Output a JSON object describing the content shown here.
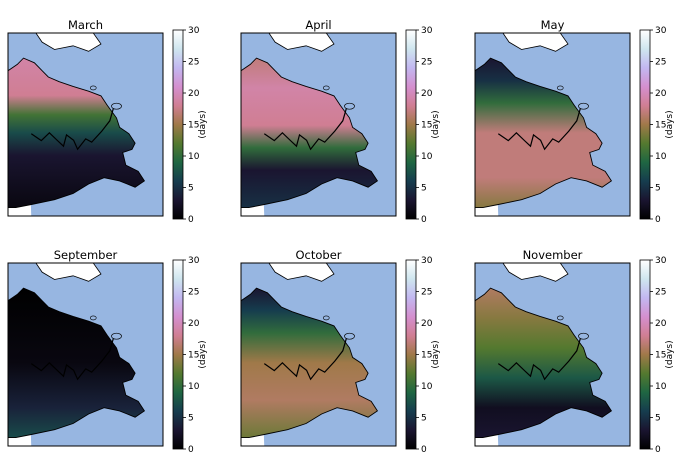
{
  "chart_data": {
    "type": "heatmap",
    "colormap": "cubehelix",
    "ocean_color": "#97b6e1",
    "colorbar": {
      "label": "(days)",
      "range": [
        0,
        30
      ],
      "ticks": [
        "0",
        "5",
        "10",
        "15",
        "20",
        "25",
        "30"
      ]
    },
    "panels": [
      {
        "title": "March",
        "bands": [
          {
            "lat": 1.0,
            "value": 1
          },
          {
            "lat": 0.65,
            "value": 3
          },
          {
            "lat": 0.5,
            "value": 7
          },
          {
            "lat": 0.38,
            "value": 11
          },
          {
            "lat": 0.25,
            "value": 18
          },
          {
            "lat": 0.0,
            "value": 19
          }
        ]
      },
      {
        "title": "April",
        "bands": [
          {
            "lat": 1.0,
            "value": 5
          },
          {
            "lat": 0.75,
            "value": 3
          },
          {
            "lat": 0.6,
            "value": 10
          },
          {
            "lat": 0.45,
            "value": 18
          },
          {
            "lat": 0.2,
            "value": 19
          },
          {
            "lat": 0.0,
            "value": 17
          }
        ]
      },
      {
        "title": "May",
        "bands": [
          {
            "lat": 1.0,
            "value": 14
          },
          {
            "lat": 0.8,
            "value": 17
          },
          {
            "lat": 0.5,
            "value": 17
          },
          {
            "lat": 0.3,
            "value": 10
          },
          {
            "lat": 0.15,
            "value": 5
          },
          {
            "lat": 0.0,
            "value": 3
          }
        ]
      },
      {
        "title": "September",
        "bands": [
          {
            "lat": 1.0,
            "value": 7
          },
          {
            "lat": 0.8,
            "value": 4
          },
          {
            "lat": 0.5,
            "value": 1
          },
          {
            "lat": 0.0,
            "value": 0
          }
        ]
      },
      {
        "title": "October",
        "bands": [
          {
            "lat": 1.0,
            "value": 13
          },
          {
            "lat": 0.75,
            "value": 16
          },
          {
            "lat": 0.5,
            "value": 15
          },
          {
            "lat": 0.3,
            "value": 10
          },
          {
            "lat": 0.15,
            "value": 6
          },
          {
            "lat": 0.0,
            "value": 3
          }
        ]
      },
      {
        "title": "November",
        "bands": [
          {
            "lat": 1.0,
            "value": 3
          },
          {
            "lat": 0.8,
            "value": 2
          },
          {
            "lat": 0.6,
            "value": 8
          },
          {
            "lat": 0.4,
            "value": 12
          },
          {
            "lat": 0.2,
            "value": 14
          },
          {
            "lat": 0.0,
            "value": 16
          }
        ]
      }
    ]
  }
}
